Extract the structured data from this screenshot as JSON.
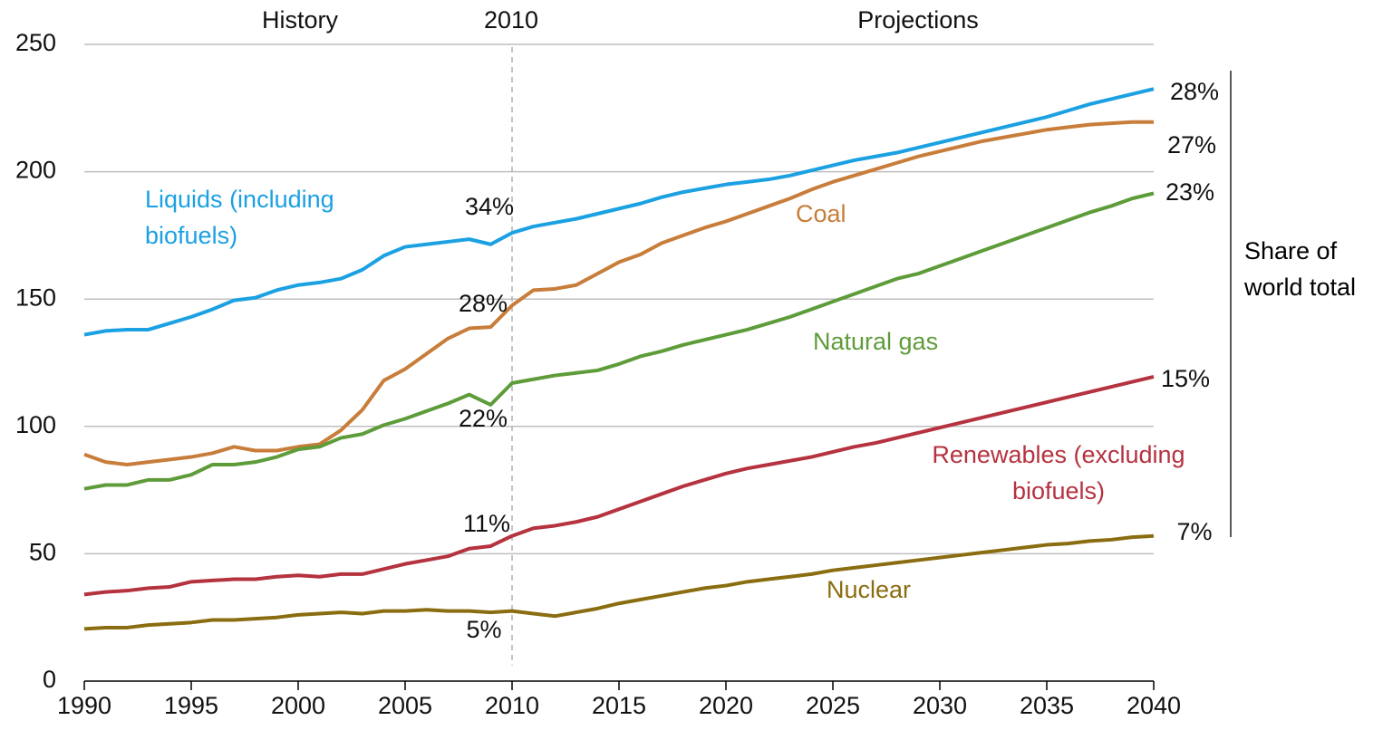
{
  "chart_data": {
    "type": "line",
    "header": [
      "History",
      "Projections"
    ],
    "divider": 2010,
    "side_note": "Share of world total",
    "x": [
      1990,
      1991,
      1992,
      1993,
      1994,
      1995,
      1996,
      1997,
      1998,
      1999,
      2000,
      2001,
      2002,
      2003,
      2004,
      2005,
      2006,
      2007,
      2008,
      2009,
      2010,
      2011,
      2012,
      2013,
      2014,
      2015,
      2016,
      2017,
      2018,
      2019,
      2020,
      2021,
      2022,
      2023,
      2024,
      2025,
      2026,
      2027,
      2028,
      2029,
      2030,
      2031,
      2032,
      2033,
      2034,
      2035,
      2036,
      2037,
      2038,
      2039,
      2040
    ],
    "xlim": [
      1990,
      2040
    ],
    "xticks": [
      1990,
      1995,
      2000,
      2005,
      2010,
      2015,
      2020,
      2025,
      2030,
      2035,
      2040
    ],
    "ylim": [
      0,
      250
    ],
    "yticks": [
      0,
      50,
      100,
      150,
      200,
      250
    ],
    "grid": true,
    "series": [
      {
        "name": "Liquids (including biofuels)",
        "color": "#1ba1e2",
        "values": [
          136,
          137.5,
          138,
          138,
          140.5,
          143,
          146,
          149.5,
          150.5,
          153.5,
          155.5,
          156.5,
          158,
          161.5,
          167,
          170.5,
          171.5,
          172.5,
          173.5,
          171.5,
          176,
          178.5,
          180,
          181.5,
          183.5,
          185.5,
          187.5,
          190,
          192,
          193.5,
          195,
          196,
          197,
          198.5,
          200.5,
          202.5,
          204.5,
          206,
          207.5,
          209.5,
          211.5,
          213.5,
          215.5,
          217.5,
          219.5,
          221.5,
          224,
          226.5,
          228.5,
          230.5,
          232.5
        ],
        "share_values": [
          34,
          28
        ],
        "share_labels": [
          "34%",
          "28%"
        ]
      },
      {
        "name": "Coal",
        "color": "#c87d3a",
        "values": [
          89,
          86,
          85,
          86,
          87,
          88,
          89.5,
          92,
          90.5,
          90.5,
          92,
          93,
          98.5,
          106.5,
          118,
          122.5,
          128.5,
          134.5,
          138.5,
          139,
          147.5,
          153.5,
          154,
          155.5,
          160,
          164.5,
          167.5,
          172,
          175,
          178,
          180.5,
          183.5,
          186.5,
          189.5,
          193,
          196,
          198.5,
          201,
          203.5,
          206,
          208,
          210,
          212,
          213.5,
          215,
          216.5,
          217.5,
          218.5,
          219,
          219.5,
          219.5
        ],
        "share_values": [
          28,
          27
        ],
        "share_labels": [
          "28%",
          "27%"
        ]
      },
      {
        "name": "Natural gas",
        "color": "#5e9c3a",
        "values": [
          75.5,
          77,
          77,
          79,
          79,
          81,
          85,
          85,
          86,
          88,
          91,
          92,
          95.5,
          97,
          100.5,
          103,
          106,
          109,
          112.5,
          108.5,
          117,
          118.5,
          120,
          121,
          122,
          124.5,
          127.5,
          129.5,
          132,
          134,
          136,
          138,
          140.5,
          143,
          146,
          149,
          152,
          155,
          158,
          160,
          163,
          166,
          169,
          172,
          175,
          178,
          181,
          184,
          186.5,
          189.5,
          191.5
        ],
        "share_values": [
          22,
          23
        ],
        "share_labels": [
          "22%",
          "23%"
        ]
      },
      {
        "name": "Renewables (excluding biofuels)",
        "color": "#b5323f",
        "values": [
          34,
          35,
          35.5,
          36.5,
          37,
          39,
          39.5,
          40,
          40,
          41,
          41.5,
          41,
          42,
          42,
          44,
          46,
          47.5,
          49,
          52,
          53,
          57,
          60,
          61,
          62.5,
          64.5,
          67.5,
          70.5,
          73.5,
          76.5,
          79,
          81.5,
          83.5,
          85,
          86.5,
          88,
          90,
          92,
          93.5,
          95.5,
          97.5,
          99.5,
          101.5,
          103.5,
          105.5,
          107.5,
          109.5,
          111.5,
          113.5,
          115.5,
          117.5,
          119.5
        ],
        "share_values": [
          11,
          15
        ],
        "share_labels": [
          "11%",
          "15%"
        ]
      },
      {
        "name": "Nuclear",
        "color": "#8a6d10",
        "values": [
          20.5,
          21,
          21,
          22,
          22.5,
          23,
          24,
          24,
          24.5,
          25,
          26,
          26.5,
          27,
          26.5,
          27.5,
          27.5,
          28,
          27.5,
          27.5,
          27,
          27.5,
          26.5,
          25.5,
          27,
          28.5,
          30.5,
          32,
          33.5,
          35,
          36.5,
          37.5,
          39,
          40,
          41,
          42,
          43.5,
          44.5,
          45.5,
          46.5,
          47.5,
          48.5,
          49.5,
          50.5,
          51.5,
          52.5,
          53.5,
          54,
          55,
          55.5,
          56.5,
          57
        ],
        "share_values": [
          5,
          7
        ],
        "share_labels": [
          "5%",
          "7%"
        ]
      }
    ]
  }
}
